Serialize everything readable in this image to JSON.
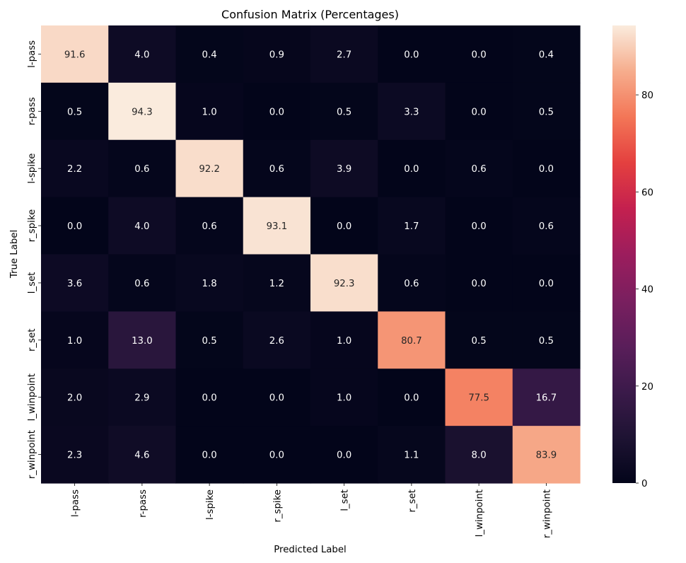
{
  "chart_data": {
    "type": "heatmap",
    "title": "Confusion Matrix (Percentages)",
    "xlabel": "Predicted Label",
    "ylabel": "True Label",
    "x_categories": [
      "l-pass",
      "r-pass",
      "l-spike",
      "r_spike",
      "l_set",
      "r_set",
      "l_winpoint",
      "r_winpoint"
    ],
    "y_categories": [
      "l-pass",
      "r-pass",
      "l-spike",
      "r_spike",
      "l_set",
      "r_set",
      "l_winpoint",
      "r_winpoint"
    ],
    "values": [
      [
        91.6,
        4.0,
        0.4,
        0.9,
        2.7,
        0.0,
        0.0,
        0.4
      ],
      [
        0.5,
        94.3,
        1.0,
        0.0,
        0.5,
        3.3,
        0.0,
        0.5
      ],
      [
        2.2,
        0.6,
        92.2,
        0.6,
        3.9,
        0.0,
        0.6,
        0.0
      ],
      [
        0.0,
        4.0,
        0.6,
        93.1,
        0.0,
        1.7,
        0.0,
        0.6
      ],
      [
        3.6,
        0.6,
        1.8,
        1.2,
        92.3,
        0.6,
        0.0,
        0.0
      ],
      [
        1.0,
        13.0,
        0.5,
        2.6,
        1.0,
        80.7,
        0.5,
        0.5
      ],
      [
        2.0,
        2.9,
        0.0,
        0.0,
        1.0,
        0.0,
        77.5,
        16.7
      ],
      [
        2.3,
        4.6,
        0.0,
        0.0,
        0.0,
        1.1,
        8.0,
        83.9
      ]
    ],
    "value_format": "0.1f",
    "colorbar": {
      "colormap": "rocket",
      "vmin": 0,
      "vmax": 94.3,
      "ticks": [
        0,
        20,
        40,
        60,
        80
      ]
    },
    "colormap_stops": [
      {
        "t": 0.0,
        "color": "#03051a"
      },
      {
        "t": 0.1,
        "color": "#1e1333"
      },
      {
        "t": 0.2,
        "color": "#3b1a4a"
      },
      {
        "t": 0.3,
        "color": "#5a1e5a"
      },
      {
        "t": 0.4,
        "color": "#7a1f5f"
      },
      {
        "t": 0.5,
        "color": "#9c1d5d"
      },
      {
        "t": 0.6,
        "color": "#c4204f"
      },
      {
        "t": 0.7,
        "color": "#e4403f"
      },
      {
        "t": 0.8,
        "color": "#f37657"
      },
      {
        "t": 0.9,
        "color": "#f6ad8d"
      },
      {
        "t": 1.0,
        "color": "#faebdd"
      }
    ],
    "annotation_light_color": "#ffffff",
    "annotation_dark_color": "#262626",
    "grid": false
  }
}
